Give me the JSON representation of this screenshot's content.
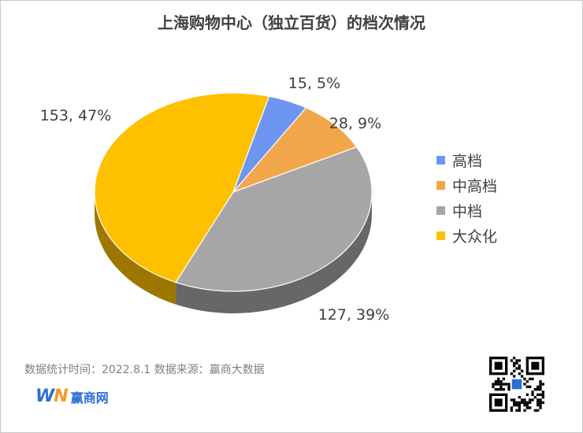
{
  "chart_title": "上海购物中心（独立百货）的档次情况",
  "chart_data": {
    "type": "pie",
    "title": "上海购物中心（独立百货）的档次情况",
    "slices": [
      {
        "name": "高档",
        "value": 15,
        "percent": "5%",
        "label": "15, 5%",
        "color": "#6d96f2"
      },
      {
        "name": "中高档",
        "value": 28,
        "percent": "9%",
        "label": "28, 9%",
        "color": "#f2a64b"
      },
      {
        "name": "中档",
        "value": 127,
        "percent": "39%",
        "label": "127, 39%",
        "color": "#a6a6a6"
      },
      {
        "name": "大众化",
        "value": 153,
        "percent": "47%",
        "label": "153, 47%",
        "color": "#ffc000"
      }
    ],
    "legend_position": "right",
    "style": "3d"
  },
  "legend": [
    "高档",
    "中高档",
    "中档",
    "大众化"
  ],
  "footer": {
    "source_note": "数据统计时间：2022.8.1  数据来源：赢商大数据",
    "brand_logo_left": "W",
    "brand_logo_right": "N",
    "brand_name": "赢商网"
  },
  "icons": {
    "qr": "qr-code-icon"
  }
}
